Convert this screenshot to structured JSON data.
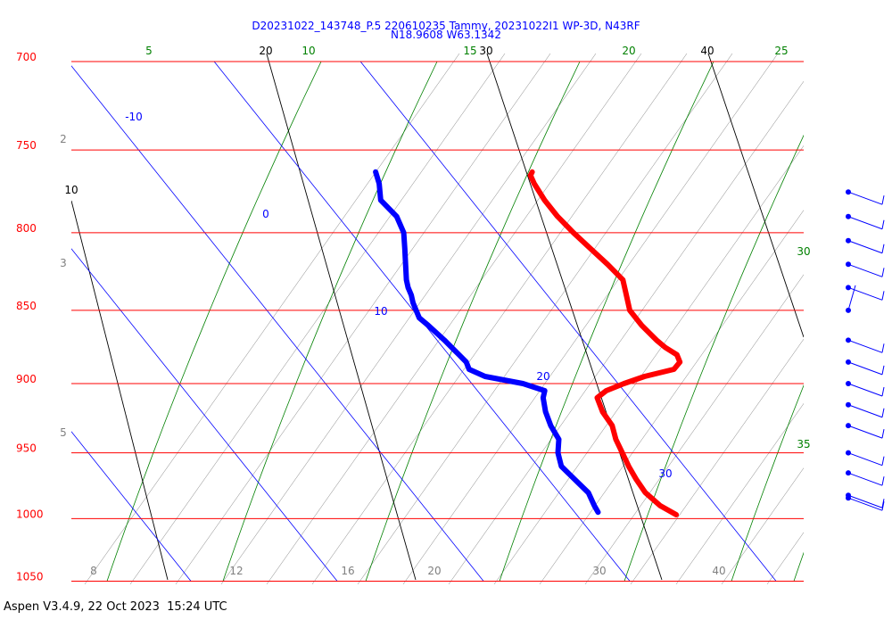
{
  "header": {
    "line1": "D20231022_143748_P.5 220610235 Tammy, 20231022I1 WP-3D, N43RF",
    "line2": "N18.9608 W63.1342"
  },
  "footer": {
    "text": "Aspen V3.4.9, 22 Oct 2023  15:24 UTC"
  },
  "colors": {
    "isobar": "#ff0000",
    "isotherm_label": "#0000ff",
    "dry_adiabat": "#000000",
    "moist_adiabat": "#008000",
    "mixing_ratio": "#808080",
    "temperature_trace": "#ff0000",
    "dewpoint_trace": "#0000ff",
    "wind_barb": "#0000ff"
  },
  "chart_data": {
    "type": "skew-t",
    "y_axis": {
      "label": "",
      "scale": "log-pressure",
      "units": "hPa",
      "range": [
        1050,
        700
      ],
      "ticks": [
        "700",
        "750",
        "800",
        "850",
        "900",
        "950",
        "1000",
        "1050"
      ]
    },
    "isotherms": [
      {
        "label": "-10",
        "value": -10
      },
      {
        "label": "0",
        "value": 0
      },
      {
        "label": "10",
        "value": 10
      },
      {
        "label": "20",
        "value": 20
      },
      {
        "label": "30",
        "value": 30
      }
    ],
    "dry_adiabats": [
      "10",
      "20",
      "30",
      "40"
    ],
    "moist_adiabats": [
      "5",
      "10",
      "15",
      "20",
      "25",
      "30",
      "35"
    ],
    "mixing_ratios": [
      "2",
      "3",
      "5",
      "8",
      "12",
      "16",
      "20",
      "30",
      "40"
    ],
    "temperature_profile": {
      "name": "",
      "pressure": [
        997,
        990,
        980,
        970,
        960,
        950,
        940,
        930,
        920,
        910,
        905,
        900,
        895,
        890,
        885,
        880,
        875,
        870,
        860,
        850,
        840,
        830,
        820,
        810,
        800,
        790,
        780,
        770,
        765,
        763
      ],
      "values": [
        26.8,
        26.2,
        25.9,
        26.0,
        26.2,
        26.5,
        26.8,
        27.3,
        27.4,
        27.8,
        28.8,
        30.4,
        32.2,
        34.6,
        35.4,
        35.6,
        35.2,
        35.0,
        34.8,
        34.8,
        35.4,
        36.0,
        35.8,
        35.5,
        35.2,
        35.0,
        35.0,
        35.2,
        35.4,
        35.7
      ]
    },
    "dewpoint_profile": {
      "name": "",
      "pressure": [
        995,
        990,
        980,
        970,
        960,
        950,
        940,
        930,
        920,
        910,
        905,
        900,
        895,
        890,
        885,
        880,
        870,
        860,
        855,
        850,
        845,
        840,
        835,
        830,
        820,
        810,
        800,
        790,
        780,
        770,
        763
      ],
      "values": [
        21.6,
        21.7,
        22.0,
        21.8,
        21.6,
        22.1,
        22.9,
        23.1,
        23.5,
        24.1,
        24.6,
        23.5,
        21.3,
        20.6,
        20.8,
        20.7,
        20.5,
        20.2,
        20.0,
        20.2,
        20.4,
        20.7,
        20.9,
        21.2,
        22.0,
        22.8,
        23.6,
        24.0,
        23.8,
        24.6,
        25.0
      ]
    },
    "wind_barbs": [
      {
        "pressure": 775,
        "speed_kt": 20
      },
      {
        "pressure": 790,
        "speed_kt": 20
      },
      {
        "pressure": 805,
        "speed_kt": 20
      },
      {
        "pressure": 820,
        "speed_kt": 20
      },
      {
        "pressure": 835,
        "speed_kt": 20
      },
      {
        "pressure": 850,
        "speed_kt": 5
      },
      {
        "pressure": 870,
        "speed_kt": 20
      },
      {
        "pressure": 885,
        "speed_kt": 20
      },
      {
        "pressure": 900,
        "speed_kt": 20
      },
      {
        "pressure": 915,
        "speed_kt": 20
      },
      {
        "pressure": 930,
        "speed_kt": 20
      },
      {
        "pressure": 950,
        "speed_kt": 20
      },
      {
        "pressure": 965,
        "speed_kt": 20
      },
      {
        "pressure": 982,
        "speed_kt": 25
      },
      {
        "pressure": 984,
        "speed_kt": 25
      }
    ]
  }
}
